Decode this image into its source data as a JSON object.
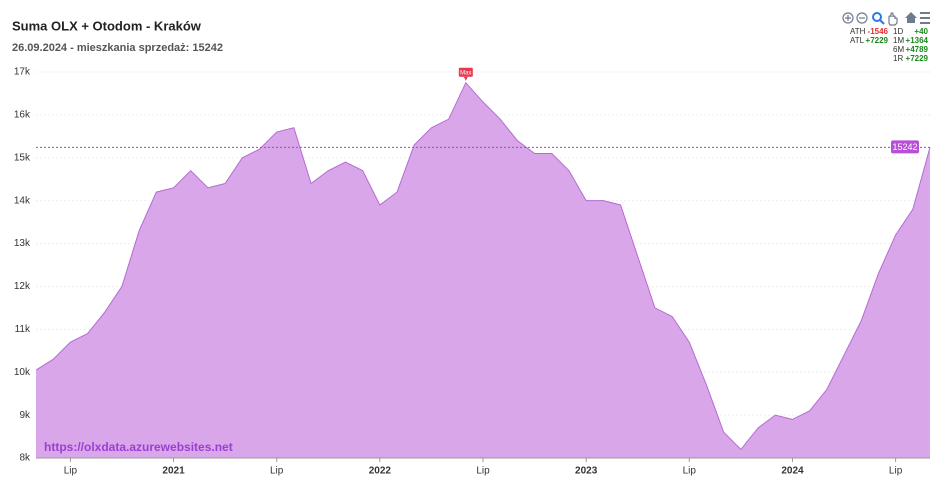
{
  "chart_data": {
    "type": "area",
    "title": "Suma OLX + Otodom - Kraków",
    "subtitle": "26.09.2024 - mieszkania sprzedaż: 15242",
    "watermark": "https://olxdata.azurewebsites.net",
    "annotation": "Max",
    "color": "#d9a6ea",
    "line_color": "#b46cd2",
    "grid": true,
    "x": [
      "2020-05",
      "2020-06",
      "2020-07",
      "2020-08",
      "2020-09",
      "2020-10",
      "2020-11",
      "2020-12",
      "2021-01",
      "2021-02",
      "2021-03",
      "2021-04",
      "2021-05",
      "2021-06",
      "2021-07",
      "2021-08",
      "2021-09",
      "2021-10",
      "2021-11",
      "2021-12",
      "2022-01",
      "2022-02",
      "2022-03",
      "2022-04",
      "2022-05",
      "2022-06",
      "2022-07",
      "2022-08",
      "2022-09",
      "2022-10",
      "2022-11",
      "2022-12",
      "2023-01",
      "2023-02",
      "2023-03",
      "2023-04",
      "2023-05",
      "2023-06",
      "2023-07",
      "2023-08",
      "2023-09",
      "2023-10",
      "2023-11",
      "2023-12",
      "2024-01",
      "2024-02",
      "2024-03",
      "2024-04",
      "2024-05",
      "2024-06",
      "2024-07",
      "2024-08",
      "2024-09"
    ],
    "values": [
      10050,
      10300,
      10700,
      10900,
      11400,
      12000,
      13300,
      14200,
      14300,
      14700,
      14300,
      14400,
      15000,
      15200,
      15600,
      15700,
      14400,
      14700,
      14900,
      14700,
      13900,
      14200,
      15300,
      15700,
      15900,
      16750,
      16300,
      15900,
      15400,
      15100,
      15100,
      14700,
      14000,
      14000,
      13900,
      12700,
      11500,
      11300,
      10700,
      9700,
      8600,
      8200,
      8700,
      9000,
      8900,
      9100,
      9600,
      10400,
      11200,
      12300,
      13200,
      13800,
      15242
    ],
    "value_labels": {
      "52": "15242"
    },
    "ylim": [
      8000,
      17000
    ],
    "yticks": [
      {
        "value": 8000,
        "label": "8k"
      },
      {
        "value": 9000,
        "label": "9k"
      },
      {
        "value": 10000,
        "label": "10k"
      },
      {
        "value": 11000,
        "label": "11k"
      },
      {
        "value": 12000,
        "label": "12k"
      },
      {
        "value": 13000,
        "label": "13k"
      },
      {
        "value": 14000,
        "label": "14k"
      },
      {
        "value": 15000,
        "label": "15k"
      },
      {
        "value": 16000,
        "label": "16k"
      },
      {
        "value": 17000,
        "label": "17k"
      }
    ],
    "xticks": [
      {
        "value": "2020-07",
        "label": "Lip"
      },
      {
        "value": "2021-01",
        "label": "2021"
      },
      {
        "value": "2021-07",
        "label": "Lip"
      },
      {
        "value": "2022-01",
        "label": "2022"
      },
      {
        "value": "2022-07",
        "label": "Lip"
      },
      {
        "value": "2023-01",
        "label": "2023"
      },
      {
        "value": "2023-07",
        "label": "Lip"
      },
      {
        "value": "2024-01",
        "label": "2024"
      },
      {
        "value": "2024-07",
        "label": "Lip"
      }
    ],
    "stats": [
      {
        "name": "ATH",
        "text": "-1546",
        "color": "#e0302f"
      },
      {
        "name": "ATL",
        "text": "+7229",
        "color": "#1a8a1a"
      },
      {
        "name": "1D",
        "text": "+40",
        "color": "#1a8a1a"
      },
      {
        "name": "1M",
        "text": "+1364",
        "color": "#1a8a1a"
      },
      {
        "name": "6M",
        "text": "+4789",
        "color": "#1a8a1a"
      },
      {
        "name": "1R",
        "text": "+7229",
        "color": "#1a8a1a"
      }
    ]
  }
}
